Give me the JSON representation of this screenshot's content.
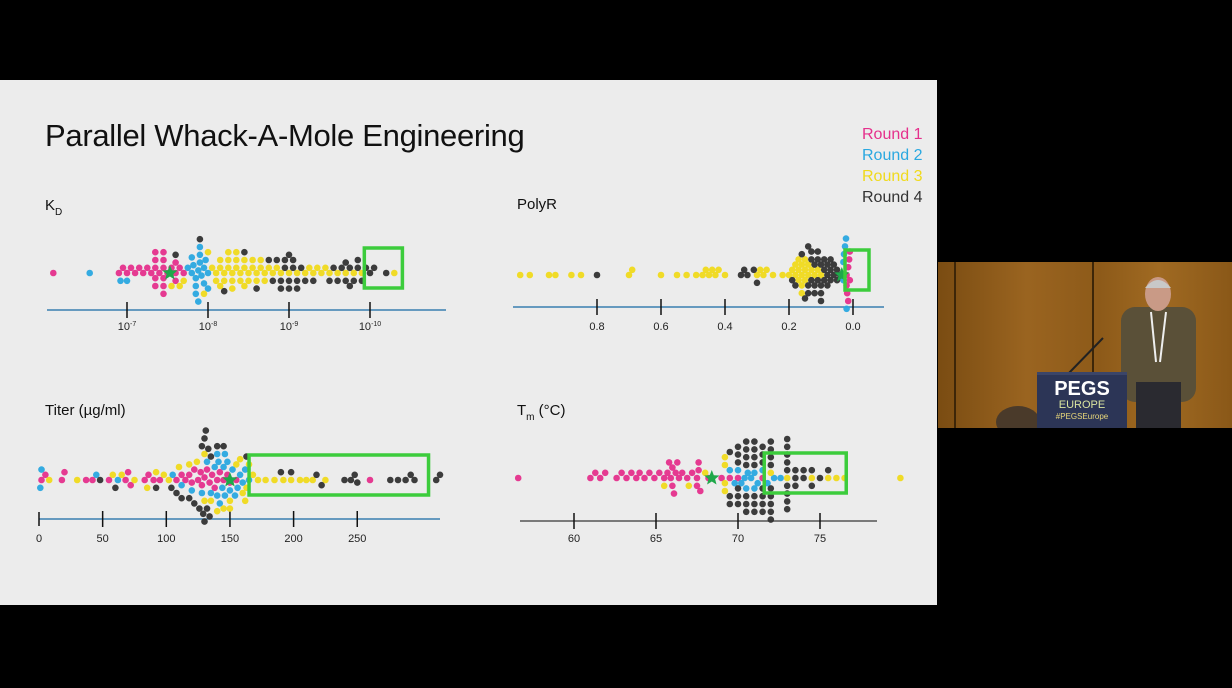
{
  "slide": {
    "title": "Parallel Whack-A-Mole Engineering",
    "legend": [
      {
        "label": "Round 1",
        "color": "#e5308c"
      },
      {
        "label": "Round 2",
        "color": "#2aa8e0"
      },
      {
        "label": "Round 3",
        "color": "#f0da1c"
      },
      {
        "label": "Round 4",
        "color": "#333333"
      }
    ],
    "parent_marker_color": "#1fa84a",
    "target_box_color": "#3ccc3c"
  },
  "video": {
    "podium_line1": "PEGS",
    "podium_line2": "EUROPE",
    "podium_line3": "#PEGSEurope"
  },
  "chart_data": [
    {
      "id": "kd",
      "type": "scatter",
      "subtype": "beeswarm",
      "title": {
        "main": "K",
        "sub": "D"
      },
      "value_unit": "log10(KD, M)",
      "ticks": [
        {
          "value": -7,
          "base": "10",
          "exp": "-7"
        },
        {
          "value": -8,
          "base": "10",
          "exp": "-8"
        },
        {
          "value": -9,
          "base": "10",
          "exp": "-9"
        },
        {
          "value": -10,
          "base": "10",
          "exp": "-10"
        }
      ],
      "axis_direction": "decreasing-right",
      "parent": -7.53,
      "target_range": [
        -9.93,
        -10.4
      ],
      "series": [
        {
          "name": "Round 1",
          "values": [
            -6.09,
            -6.9,
            -6.95,
            -7.0,
            -7.05,
            -7.1,
            -7.15,
            -7.2,
            -7.25,
            -7.3,
            -7.35,
            -7.35,
            -7.35,
            -7.35,
            -7.4,
            -7.45,
            -7.45,
            -7.45,
            -7.45,
            -7.5,
            -7.55,
            -7.6,
            -7.6,
            -7.6,
            -7.65,
            -7.7,
            -7.45,
            -7.45,
            -7.35
          ]
        },
        {
          "name": "Round 2",
          "values": [
            -6.54,
            -6.92,
            -7.0,
            -7.75,
            -7.8,
            -7.82,
            -7.85,
            -7.85,
            -7.88,
            -7.9,
            -7.9,
            -7.92,
            -7.95,
            -7.95,
            -7.97,
            -8.0,
            -8.0,
            -7.85,
            -7.9,
            -7.8,
            -7.88
          ]
        },
        {
          "name": "Round 3",
          "values": [
            -7.55,
            -7.65,
            -7.7,
            -7.95,
            -8.0,
            -8.05,
            -8.1,
            -8.1,
            -8.15,
            -8.15,
            -8.2,
            -8.2,
            -8.25,
            -8.25,
            -8.3,
            -8.3,
            -8.3,
            -8.35,
            -8.35,
            -8.4,
            -8.4,
            -8.45,
            -8.45,
            -8.5,
            -8.5,
            -8.55,
            -8.6,
            -8.6,
            -8.65,
            -8.7,
            -8.7,
            -8.75,
            -8.8,
            -8.85,
            -8.9,
            -9.0,
            -9.1,
            -9.2,
            -9.25,
            -9.3,
            -9.35,
            -9.4,
            -9.45,
            -9.5,
            -9.6,
            -9.7,
            -9.8,
            -9.9,
            -10.3,
            -8.15,
            -8.25,
            -8.35,
            -8.45,
            -8.55,
            -8.65
          ]
        },
        {
          "name": "Round 4",
          "values": [
            -7.6,
            -7.9,
            -8.2,
            -8.45,
            -8.6,
            -8.75,
            -8.8,
            -8.85,
            -8.9,
            -8.9,
            -8.95,
            -8.95,
            -9.0,
            -9.0,
            -9.0,
            -9.05,
            -9.05,
            -9.1,
            -9.1,
            -9.15,
            -9.2,
            -9.3,
            -9.5,
            -9.55,
            -9.6,
            -9.65,
            -9.7,
            -9.7,
            -9.75,
            -9.75,
            -9.8,
            -9.85,
            -9.85,
            -9.9,
            -9.95,
            -10.0,
            -10.05,
            -10.2
          ]
        }
      ]
    },
    {
      "id": "polyr",
      "type": "scatter",
      "subtype": "beeswarm",
      "title": {
        "main": "PolyR",
        "sub": ""
      },
      "ticks": [
        {
          "value": 0.8,
          "label": "0.8"
        },
        {
          "value": 0.6,
          "label": "0.6"
        },
        {
          "value": 0.4,
          "label": "0.4"
        },
        {
          "value": 0.2,
          "label": "0.2"
        },
        {
          "value": 0.0,
          "label": "0.0"
        }
      ],
      "axis_direction": "decreasing-right",
      "parent": 0.035,
      "target_range": [
        0.025,
        -0.05
      ],
      "series": [
        {
          "name": "Round 1",
          "values": [
            0.02,
            0.015,
            0.01,
            0.02,
            0.012,
            0.018,
            0.01,
            0.015
          ]
        },
        {
          "name": "Round 2",
          "values": [
            0.03,
            0.025,
            0.02,
            0.028,
            0.022,
            0.03
          ]
        },
        {
          "name": "Round 3",
          "values": [
            1.04,
            1.01,
            0.95,
            0.93,
            0.88,
            0.85,
            0.7,
            0.69,
            0.6,
            0.55,
            0.52,
            0.49,
            0.47,
            0.46,
            0.45,
            0.44,
            0.43,
            0.42,
            0.4,
            0.3,
            0.29,
            0.28,
            0.27,
            0.25,
            0.22,
            0.2,
            0.19,
            0.18,
            0.17,
            0.17,
            0.16,
            0.16,
            0.16,
            0.15,
            0.15,
            0.14,
            0.14,
            0.13,
            0.12,
            0.11,
            0.1,
            0.17,
            0.16,
            0.15,
            0.18
          ]
        },
        {
          "name": "Round 4",
          "values": [
            0.8,
            0.35,
            0.34,
            0.33,
            0.31,
            0.3,
            0.19,
            0.18,
            0.16,
            0.15,
            0.14,
            0.14,
            0.13,
            0.13,
            0.12,
            0.12,
            0.11,
            0.11,
            0.1,
            0.1,
            0.1,
            0.09,
            0.09,
            0.08,
            0.08,
            0.08,
            0.07,
            0.07,
            0.06,
            0.06,
            0.05,
            0.05,
            0.04,
            0.12,
            0.11,
            0.09,
            0.1,
            0.07,
            0.13,
            0.14
          ]
        }
      ]
    },
    {
      "id": "titer",
      "type": "scatter",
      "subtype": "beeswarm",
      "title": {
        "main": "Titer (µg/ml)",
        "sub": ""
      },
      "ticks": [
        {
          "value": 0,
          "label": "0"
        },
        {
          "value": 50,
          "label": "50"
        },
        {
          "value": 100,
          "label": "100"
        },
        {
          "value": 150,
          "label": "150"
        },
        {
          "value": 200,
          "label": "200"
        },
        {
          "value": 250,
          "label": "250"
        }
      ],
      "axis_direction": "increasing-right",
      "parent": 150,
      "target_range": [
        165,
        306
      ],
      "series": [
        {
          "name": "Round 1",
          "values": [
            2,
            5,
            18,
            20,
            37,
            42,
            55,
            68,
            70,
            72,
            83,
            86,
            90,
            95,
            108,
            112,
            115,
            118,
            120,
            122,
            125,
            127,
            128,
            130,
            132,
            134,
            136,
            138,
            140,
            142,
            145,
            148,
            150,
            155,
            260
          ]
        },
        {
          "name": "Round 2",
          "values": [
            1,
            2,
            45,
            62,
            105,
            112,
            120,
            128,
            132,
            135,
            138,
            140,
            141,
            142,
            144,
            145,
            146,
            148,
            150,
            152,
            154,
            156,
            158,
            160,
            162,
            165,
            140,
            146
          ]
        },
        {
          "name": "Round 3",
          "values": [
            8,
            30,
            58,
            65,
            75,
            85,
            92,
            98,
            102,
            110,
            118,
            124,
            130,
            135,
            140,
            145,
            150,
            155,
            158,
            160,
            163,
            165,
            168,
            172,
            178,
            185,
            192,
            198,
            205,
            210,
            215,
            225,
            130,
            150,
            162
          ]
        },
        {
          "name": "Round 4",
          "values": [
            48,
            60,
            92,
            104,
            108,
            112,
            118,
            122,
            126,
            128,
            129,
            130,
            130,
            131,
            132,
            133,
            134,
            135,
            140,
            145,
            163,
            190,
            198,
            218,
            222,
            240,
            245,
            248,
            250,
            276,
            282,
            288,
            292,
            295,
            312,
            315
          ]
        }
      ]
    },
    {
      "id": "tm",
      "type": "scatter",
      "subtype": "beeswarm",
      "title": {
        "main": "T",
        "sub": "m",
        "suffix": " (°C)"
      },
      "ticks": [
        {
          "value": 60,
          "label": "60"
        },
        {
          "value": 65,
          "label": "65"
        },
        {
          "value": 70,
          "label": "70"
        },
        {
          "value": 75,
          "label": "75"
        }
      ],
      "axis_direction": "increasing-right",
      "parent": 68.4,
      "target_range": [
        71.6,
        76.6
      ],
      "series": [
        {
          "name": "Round 1",
          "values": [
            56.6,
            61.0,
            61.3,
            61.6,
            61.9,
            62.6,
            62.9,
            63.2,
            63.5,
            63.8,
            64.0,
            64.3,
            64.6,
            64.9,
            65.2,
            65.5,
            65.7,
            65.9,
            66.0,
            66.0,
            66.1,
            66.2,
            66.4,
            66.6,
            66.9,
            67.2,
            67.5,
            67.5,
            67.6,
            67.6,
            67.7,
            68.2,
            69.0,
            69.5,
            70.0,
            71.5,
            65.8,
            66.3
          ]
        },
        {
          "name": "Round 2",
          "values": [
            69.5,
            69.8,
            70.0,
            70.2,
            70.4,
            70.6,
            70.8,
            71.0,
            71.2,
            71.5,
            71.8,
            72.2,
            72.6,
            70.5,
            71.0
          ]
        },
        {
          "name": "Round 3",
          "values": [
            65.5,
            67.0,
            68.0,
            69.2,
            69.2,
            69.2,
            69.2,
            72.0,
            73.0,
            74.5,
            75.5,
            76.0,
            76.5,
            79.9
          ]
        },
        {
          "name": "Round 4",
          "values": [
            69.5,
            69.5,
            69.5,
            70.0,
            70.0,
            70.0,
            70.0,
            70.0,
            70.0,
            70.5,
            70.5,
            70.5,
            70.5,
            70.5,
            70.5,
            70.5,
            71.0,
            71.0,
            71.0,
            71.0,
            71.0,
            71.0,
            71.0,
            71.5,
            71.5,
            71.5,
            71.5,
            71.5,
            71.5,
            71.5,
            72.0,
            72.0,
            72.0,
            72.0,
            72.0,
            72.0,
            72.0,
            72.0,
            72.0,
            73.0,
            73.0,
            73.0,
            73.0,
            73.0,
            73.0,
            73.0,
            73.0,
            73.0,
            73.5,
            73.5,
            73.5,
            74.0,
            74.0,
            74.5,
            74.5,
            75.0,
            75.5
          ]
        }
      ]
    }
  ]
}
